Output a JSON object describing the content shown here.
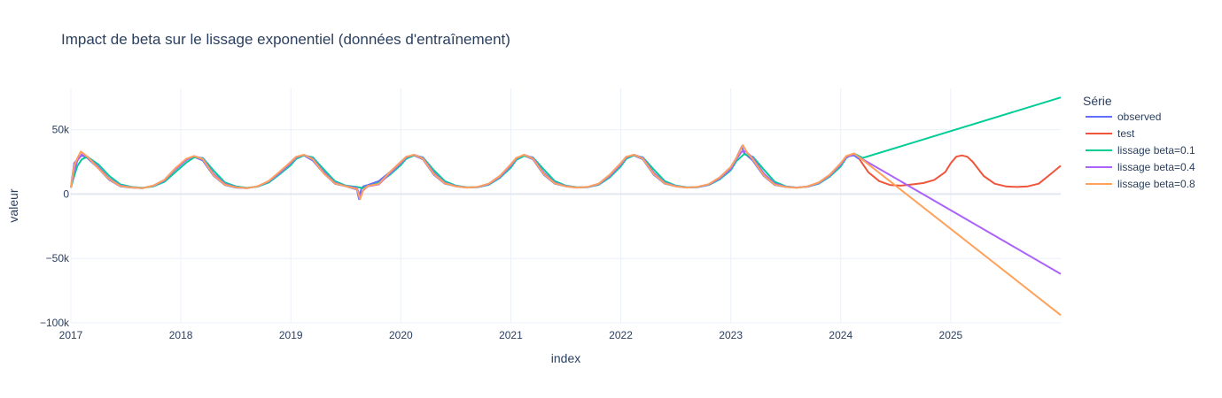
{
  "chart_data": {
    "type": "line",
    "title": "Impact de beta sur le lissage exponentiel (données d'entraînement)",
    "xlabel": "index",
    "ylabel": "valeur",
    "xlim": [
      2017.0,
      2026.0
    ],
    "ylim": [
      -100000,
      82000
    ],
    "x_ticks": [
      2017,
      2018,
      2019,
      2020,
      2021,
      2022,
      2023,
      2024,
      2025
    ],
    "x_tick_labels": [
      "2017",
      "2018",
      "2019",
      "2020",
      "2021",
      "2022",
      "2023",
      "2024",
      "2025"
    ],
    "y_ticks": [
      -100000,
      -50000,
      0,
      50000
    ],
    "y_tick_labels": [
      "−100k",
      "−50k",
      "0",
      "50k"
    ],
    "grid": true,
    "legend_title": "Série",
    "legend_position": "right",
    "series": [
      {
        "name": "observed",
        "color": "#636efa",
        "x": [
          2017.0,
          2017.03,
          2017.06,
          2017.1,
          2017.15,
          2017.25,
          2017.35,
          2017.45,
          2017.55,
          2017.65,
          2017.75,
          2017.85,
          2017.95,
          2018.05,
          2018.12,
          2018.2,
          2018.3,
          2018.4,
          2018.5,
          2018.6,
          2018.7,
          2018.8,
          2018.9,
          2019.0,
          2019.05,
          2019.12,
          2019.2,
          2019.3,
          2019.4,
          2019.5,
          2019.6,
          2019.62,
          2019.64,
          2019.66,
          2019.7,
          2019.8,
          2019.9,
          2020.0,
          2020.05,
          2020.12,
          2020.2,
          2020.3,
          2020.4,
          2020.5,
          2020.6,
          2020.7,
          2020.8,
          2020.9,
          2021.0,
          2021.05,
          2021.12,
          2021.2,
          2021.3,
          2021.4,
          2021.5,
          2021.6,
          2021.7,
          2021.8,
          2021.9,
          2022.0,
          2022.05,
          2022.12,
          2022.2,
          2022.3,
          2022.4,
          2022.5,
          2022.6,
          2022.7,
          2022.8,
          2022.9,
          2023.0,
          2023.05,
          2023.1,
          2023.12,
          2023.2,
          2023.3,
          2023.4,
          2023.5,
          2023.6,
          2023.7,
          2023.8,
          2023.9,
          2024.0,
          2024.05,
          2024.12,
          2024.17
        ],
        "y": [
          5000,
          24000,
          27000,
          30000,
          28000,
          20000,
          11000,
          6000,
          5000,
          4500,
          6500,
          11000,
          20000,
          27000,
          29000,
          26000,
          14000,
          7000,
          5000,
          4500,
          6000,
          10000,
          17000,
          25000,
          29000,
          30000,
          26000,
          16000,
          8000,
          6000,
          3500,
          -4000,
          4000,
          6000,
          7000,
          10000,
          17000,
          25000,
          29000,
          30000,
          27000,
          15000,
          8000,
          6000,
          5000,
          5500,
          8000,
          14000,
          23000,
          28000,
          30000,
          27000,
          15000,
          8000,
          6000,
          5000,
          5500,
          8000,
          15000,
          24000,
          29000,
          30000,
          27000,
          15000,
          8000,
          6000,
          5000,
          5500,
          7500,
          13000,
          21000,
          28000,
          37000,
          32000,
          26000,
          14000,
          7000,
          5500,
          5000,
          6000,
          9000,
          15000,
          24000,
          29000,
          30000,
          27000
        ]
      },
      {
        "name": "test",
        "color": "#ef553b",
        "x": [
          2024.17,
          2024.25,
          2024.35,
          2024.45,
          2024.55,
          2024.65,
          2024.75,
          2024.85,
          2024.95,
          2025.0,
          2025.05,
          2025.1,
          2025.15,
          2025.2,
          2025.3,
          2025.4,
          2025.5,
          2025.6,
          2025.7,
          2025.8,
          2025.9,
          2026.0
        ],
        "y": [
          27000,
          17000,
          10000,
          7000,
          6500,
          7500,
          8500,
          11000,
          17000,
          24000,
          29000,
          30000,
          29000,
          25000,
          14000,
          8000,
          6000,
          5500,
          6000,
          8000,
          15000,
          22000
        ]
      },
      {
        "name": "lissage beta=0.1",
        "color": "#00cc96",
        "x": [
          2017.0,
          2017.03,
          2017.06,
          2017.1,
          2017.15,
          2017.25,
          2017.35,
          2017.45,
          2017.55,
          2017.65,
          2017.75,
          2017.85,
          2017.95,
          2018.05,
          2018.12,
          2018.2,
          2018.3,
          2018.4,
          2018.5,
          2018.6,
          2018.7,
          2018.8,
          2018.9,
          2019.0,
          2019.05,
          2019.12,
          2019.2,
          2019.3,
          2019.4,
          2019.5,
          2019.6,
          2019.66,
          2019.7,
          2019.8,
          2019.9,
          2020.0,
          2020.05,
          2020.12,
          2020.2,
          2020.3,
          2020.4,
          2020.5,
          2020.6,
          2020.7,
          2020.8,
          2020.9,
          2021.0,
          2021.05,
          2021.12,
          2021.2,
          2021.3,
          2021.4,
          2021.5,
          2021.6,
          2021.7,
          2021.8,
          2021.9,
          2022.0,
          2022.05,
          2022.12,
          2022.2,
          2022.3,
          2022.4,
          2022.5,
          2022.6,
          2022.7,
          2022.8,
          2022.9,
          2023.0,
          2023.05,
          2023.12,
          2023.2,
          2023.3,
          2023.4,
          2023.5,
          2023.6,
          2023.7,
          2023.8,
          2023.9,
          2024.0,
          2024.05,
          2024.12,
          2024.2,
          2026.0
        ],
        "y": [
          5000,
          14000,
          22000,
          27000,
          29000,
          23000,
          14000,
          7500,
          5500,
          4800,
          6000,
          9500,
          17000,
          24500,
          28500,
          28000,
          18000,
          9000,
          6000,
          4800,
          5800,
          9000,
          15500,
          22500,
          27500,
          30000,
          28500,
          19000,
          10000,
          6500,
          5500,
          4500,
          6000,
          8500,
          15000,
          22500,
          27500,
          30000,
          28500,
          18500,
          10000,
          6500,
          5200,
          5300,
          7200,
          12500,
          20500,
          26500,
          29500,
          28500,
          19000,
          10000,
          6500,
          5200,
          5300,
          7200,
          13000,
          21500,
          27500,
          30000,
          28500,
          19000,
          10000,
          6500,
          5200,
          5300,
          7000,
          11500,
          18500,
          25500,
          31000,
          29000,
          19000,
          9500,
          6000,
          5000,
          5700,
          8000,
          13500,
          21500,
          28000,
          31500,
          28000,
          75000
        ]
      },
      {
        "name": "lissage beta=0.4",
        "color": "#ab63fa",
        "x": [
          2017.0,
          2017.03,
          2017.06,
          2017.1,
          2017.15,
          2017.25,
          2017.35,
          2017.45,
          2017.55,
          2017.65,
          2017.75,
          2017.85,
          2017.95,
          2018.05,
          2018.12,
          2018.2,
          2018.3,
          2018.4,
          2018.5,
          2018.6,
          2018.7,
          2018.8,
          2018.9,
          2019.0,
          2019.05,
          2019.12,
          2019.2,
          2019.3,
          2019.4,
          2019.5,
          2019.6,
          2019.63,
          2019.66,
          2019.7,
          2019.8,
          2019.9,
          2020.0,
          2020.05,
          2020.12,
          2020.2,
          2020.3,
          2020.4,
          2020.5,
          2020.6,
          2020.7,
          2020.8,
          2020.9,
          2021.0,
          2021.05,
          2021.12,
          2021.2,
          2021.3,
          2021.4,
          2021.5,
          2021.6,
          2021.7,
          2021.8,
          2021.9,
          2022.0,
          2022.05,
          2022.12,
          2022.2,
          2022.3,
          2022.4,
          2022.5,
          2022.6,
          2022.7,
          2022.8,
          2022.9,
          2023.0,
          2023.05,
          2023.1,
          2023.14,
          2023.2,
          2023.3,
          2023.4,
          2023.5,
          2023.6,
          2023.7,
          2023.8,
          2023.9,
          2024.0,
          2024.05,
          2024.12,
          2024.2,
          2026.0
        ],
        "y": [
          5000,
          18000,
          26000,
          31000,
          29000,
          21000,
          12000,
          6500,
          5200,
          4600,
          6300,
          10500,
          19000,
          26500,
          29500,
          27500,
          15500,
          7800,
          5400,
          4600,
          6000,
          9800,
          16500,
          24000,
          28500,
          30500,
          27500,
          17000,
          8800,
          6200,
          4800,
          -1500,
          3000,
          6000,
          7500,
          16000,
          24000,
          28500,
          30500,
          28000,
          16500,
          8800,
          6200,
          5100,
          5400,
          7600,
          13200,
          22000,
          27500,
          30500,
          28000,
          16500,
          8800,
          6200,
          5100,
          5400,
          7600,
          14000,
          23000,
          28500,
          30500,
          28000,
          16500,
          8800,
          6200,
          5100,
          5400,
          7300,
          12200,
          19500,
          27000,
          33000,
          33000,
          28000,
          16000,
          8000,
          5700,
          5000,
          5800,
          8500,
          14300,
          23000,
          28500,
          31000,
          27000,
          -62000
        ]
      },
      {
        "name": "lissage beta=0.8",
        "color": "#ffa15a",
        "x": [
          2017.0,
          2017.03,
          2017.06,
          2017.09,
          2017.15,
          2017.25,
          2017.35,
          2017.45,
          2017.55,
          2017.65,
          2017.75,
          2017.85,
          2017.95,
          2018.05,
          2018.12,
          2018.2,
          2018.3,
          2018.4,
          2018.5,
          2018.6,
          2018.7,
          2018.8,
          2018.9,
          2019.0,
          2019.05,
          2019.12,
          2019.2,
          2019.3,
          2019.4,
          2019.5,
          2019.6,
          2019.63,
          2019.66,
          2019.7,
          2019.8,
          2019.9,
          2020.0,
          2020.05,
          2020.12,
          2020.2,
          2020.3,
          2020.4,
          2020.5,
          2020.6,
          2020.7,
          2020.8,
          2020.9,
          2021.0,
          2021.05,
          2021.12,
          2021.2,
          2021.3,
          2021.4,
          2021.5,
          2021.6,
          2021.7,
          2021.8,
          2021.9,
          2022.0,
          2022.05,
          2022.12,
          2022.2,
          2022.3,
          2022.4,
          2022.5,
          2022.6,
          2022.7,
          2022.8,
          2022.9,
          2023.0,
          2023.05,
          2023.11,
          2023.15,
          2023.2,
          2023.3,
          2023.4,
          2023.5,
          2023.6,
          2023.7,
          2023.8,
          2023.9,
          2024.0,
          2024.05,
          2024.12,
          2024.2,
          2026.0
        ],
        "y": [
          5000,
          22000,
          28000,
          33000,
          29000,
          20000,
          11500,
          6200,
          5100,
          4500,
          6500,
          11000,
          20000,
          27500,
          29500,
          27000,
          14500,
          7300,
          5200,
          4500,
          6100,
          10200,
          17500,
          25000,
          29000,
          30500,
          27000,
          16000,
          8300,
          6000,
          4000,
          -4000,
          3500,
          6300,
          7800,
          17000,
          25000,
          29000,
          30500,
          27500,
          15500,
          8300,
          6000,
          5000,
          5600,
          8000,
          14000,
          23000,
          28000,
          30500,
          27500,
          15500,
          8300,
          6000,
          5000,
          5600,
          8000,
          15000,
          24000,
          29000,
          30500,
          27500,
          15500,
          8300,
          6000,
          5000,
          5600,
          7700,
          13000,
          21000,
          28000,
          38000,
          32000,
          27000,
          14500,
          7300,
          5500,
          4800,
          6000,
          9000,
          15000,
          24000,
          29500,
          31500,
          26500,
          -94000
        ]
      }
    ]
  }
}
